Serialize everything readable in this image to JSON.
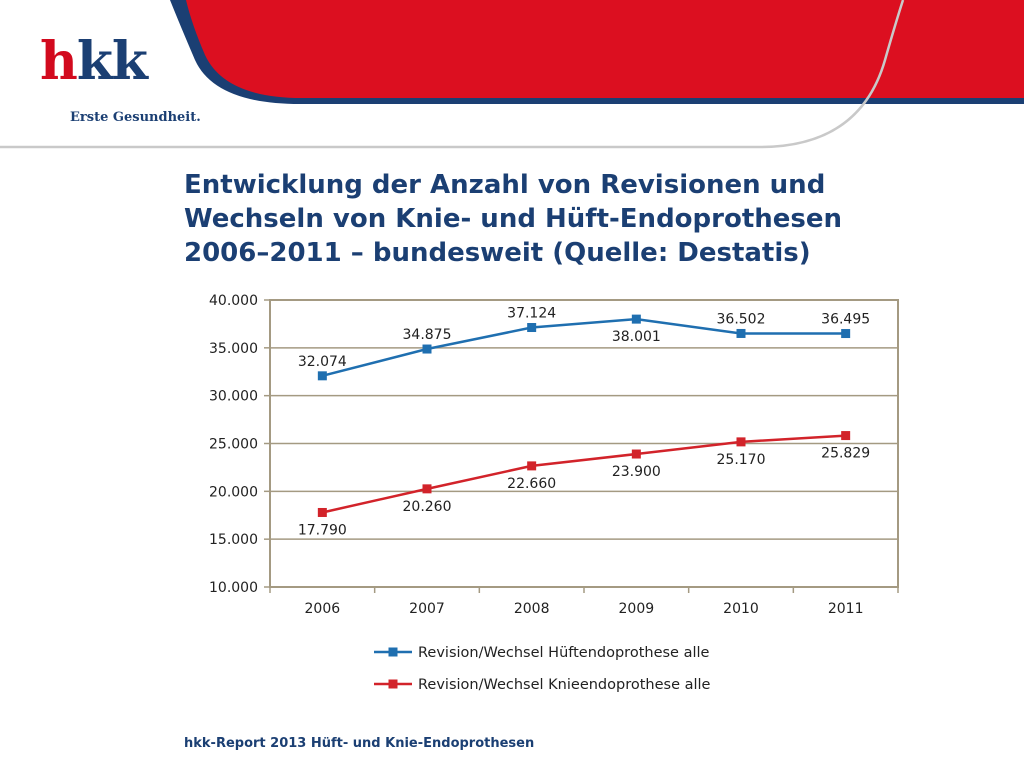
{
  "logo": {
    "brand": "hkk",
    "tagline": "Erste Gesundheit."
  },
  "slide": {
    "title_lines": [
      "Entwicklung der Anzahl von Revisionen und",
      "Wechseln von Knie- und Hüft-Endoprothesen",
      "2006–2011 – bundesweit (Quelle: Destatis)"
    ],
    "footer": "hkk-Report 2013 Hüft- und Knie-Endoprothesen"
  },
  "colors": {
    "brand_red": "#d20a1e",
    "brand_blue": "#1b3f73",
    "series_blue": "#1f6fb0",
    "series_red": "#d2232a",
    "grid": "#a49a82"
  },
  "chart_data": {
    "type": "line",
    "title": "",
    "xlabel": "",
    "ylabel": "",
    "categories": [
      "2006",
      "2007",
      "2008",
      "2009",
      "2010",
      "2011"
    ],
    "ylim": [
      10000,
      40000
    ],
    "y_ticks": [
      10000,
      15000,
      20000,
      25000,
      30000,
      35000,
      40000
    ],
    "y_tick_labels": [
      "10.000",
      "15.000",
      "20.000",
      "25.000",
      "30.000",
      "35.000",
      "40.000"
    ],
    "grid": true,
    "legend_position": "bottom",
    "series": [
      {
        "name": "Revision/Wechsel Hüftendoprothese alle",
        "values": [
          32074,
          34875,
          37124,
          38001,
          36502,
          36495
        ],
        "labels": [
          "32.074",
          "34.875",
          "37.124",
          "38.001",
          "36.502",
          "36.495"
        ],
        "color": "#1f6fb0"
      },
      {
        "name": "Revision/Wechsel Knieendoprothese alle",
        "values": [
          17790,
          20260,
          22660,
          23900,
          25170,
          25829
        ],
        "labels": [
          "17.790",
          "20.260",
          "22.660",
          "23.900",
          "25.170",
          "25.829"
        ],
        "color": "#d2232a"
      }
    ]
  }
}
